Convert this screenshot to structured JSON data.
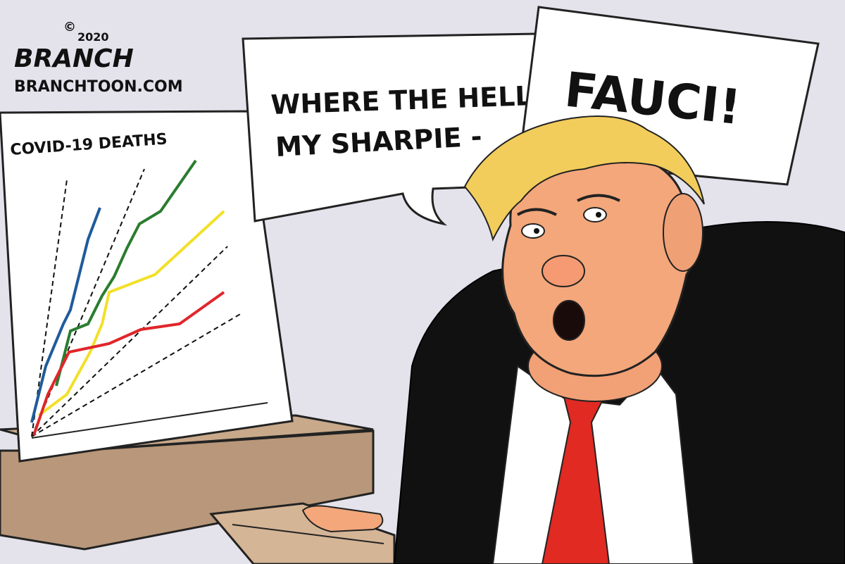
{
  "signature": {
    "name": "BRANCH",
    "year": "2020",
    "copyright_symbol": "©",
    "website": "BRANCHTOON.COM"
  },
  "chart": {
    "title": "COVID-19 DEATHS",
    "colors": {
      "blue": "#1f5b9a",
      "green": "#2a7d2e",
      "yellow": "#f2e02a",
      "red": "#e0262a",
      "dashed": "#111111"
    }
  },
  "speech": {
    "line1": "WHERE THE HELL IS",
    "line2": "MY SHARPIE -",
    "exclaim": "FAUCI!"
  },
  "palette": {
    "background": "#e4e3ec",
    "desk": "#c8a98a",
    "suit": "#111111",
    "tie": "#e02a22",
    "hair": "#f2cd5c",
    "skin": "#f3a77b"
  }
}
